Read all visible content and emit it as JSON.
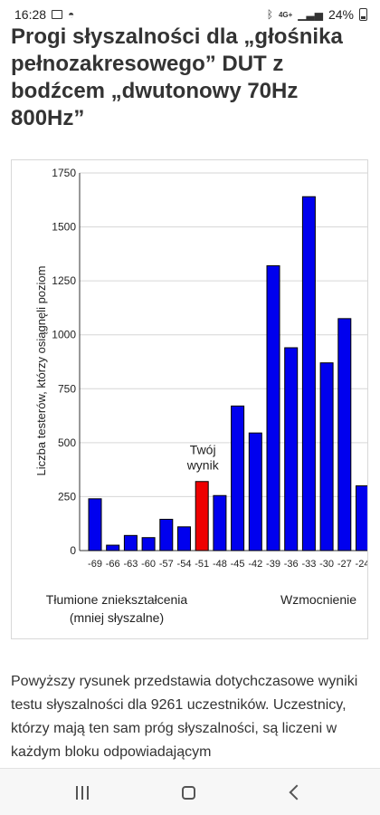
{
  "status_bar": {
    "time": "16:28",
    "network": "4G+",
    "battery": "24%"
  },
  "page": {
    "title": "Progi słyszalności dla „głośnika pełnozakresowego” DUT z bodźcem „dwutonowy 70Hz 800Hz”",
    "body_text": "Powyższy rysunek przedstawia dotychczasowe wyniki testu słyszalności dla 9261 uczestników. Uczestnicy, którzy mają ten sam próg słyszalności, są liczeni w każdym bloku odpowiadającym"
  },
  "chart": {
    "caption_left_line1": "Tłumione zniekształcenia",
    "caption_left_line2": "(mniej słyszalne)",
    "caption_right": "Wzmocnienie"
  },
  "chart_data": {
    "type": "bar",
    "ylabel": "Liczba testerów, którzy osiągnęli poziom",
    "xlabel": "",
    "categories": [
      "-69",
      "-66",
      "-63",
      "-60",
      "-57",
      "-54",
      "-51",
      "-48",
      "-45",
      "-42",
      "-39",
      "-36",
      "-33",
      "-30",
      "-27",
      "-24"
    ],
    "values": [
      240,
      25,
      70,
      60,
      145,
      110,
      320,
      255,
      670,
      545,
      1320,
      940,
      1640,
      870,
      1075,
      300
    ],
    "highlight_category": "-51",
    "highlight_label_line1": "Twój",
    "highlight_label_line2": "wynik",
    "y_ticks": [
      "0",
      "250",
      "500",
      "750",
      "1000",
      "1250",
      "1500",
      "1750"
    ],
    "ylim": [
      0,
      1750
    ],
    "bar_color": "#0000ee",
    "highlight_color": "#ee0000",
    "grid": true
  }
}
